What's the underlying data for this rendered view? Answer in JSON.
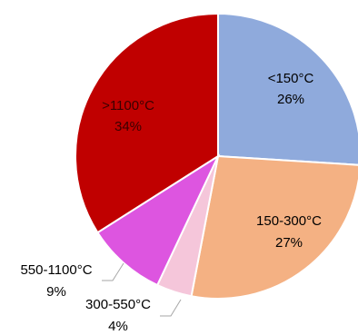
{
  "chart_data": {
    "type": "pie",
    "title": "",
    "start_angle_deg": 90,
    "direction": "clockwise",
    "slices": [
      {
        "label": "<150°C",
        "value": 26,
        "value_label": "26%",
        "color": "#8faadc"
      },
      {
        "label": "150-300°C",
        "value": 27,
        "value_label": "27%",
        "color": "#f4b183"
      },
      {
        "label": "300-550°C",
        "value": 4,
        "value_label": "4%",
        "color": "#f5c6da"
      },
      {
        "label": "550-1100°C",
        "value": 9,
        "value_label": "9%",
        "color": "#dd55e0"
      },
      {
        "label": ">1100°C",
        "value": 34,
        "value_label": "34%",
        "color": "#c00000"
      }
    ]
  }
}
